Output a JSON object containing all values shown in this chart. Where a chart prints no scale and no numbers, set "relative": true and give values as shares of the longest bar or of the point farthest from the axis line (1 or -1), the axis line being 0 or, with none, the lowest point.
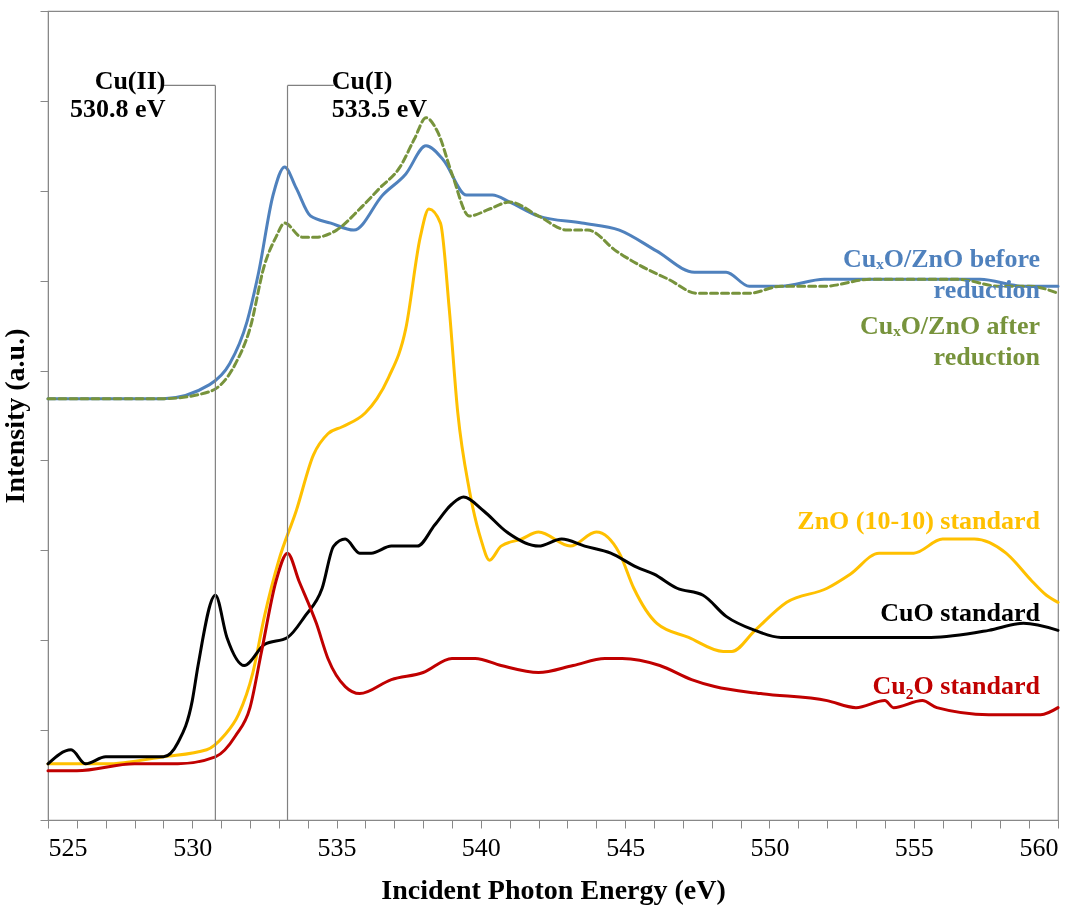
{
  "chart_data": {
    "type": "line",
    "relative": true,
    "xlabel": "Incident Photon Energy (eV)",
    "ylabel": "Intensity (a.u.)",
    "xlim": [
      525,
      560
    ],
    "xticks": [
      525,
      {
        "value": 526,
        "label": null
      },
      {
        "value": 527,
        "label": null
      },
      {
        "value": 528,
        "label": null
      },
      {
        "value": 529,
        "label": null
      },
      530,
      {
        "value": 531,
        "label": null
      },
      {
        "value": 532,
        "label": null
      },
      {
        "value": 533,
        "label": null
      },
      {
        "value": 534,
        "label": null
      },
      535,
      {
        "value": 536,
        "label": null
      },
      {
        "value": 537,
        "label": null
      },
      {
        "value": 538,
        "label": null
      },
      {
        "value": 539,
        "label": null
      },
      540,
      {
        "value": 541,
        "label": null
      },
      {
        "value": 542,
        "label": null
      },
      {
        "value": 543,
        "label": null
      },
      {
        "value": 544,
        "label": null
      },
      545,
      {
        "value": 546,
        "label": null
      },
      {
        "value": 547,
        "label": null
      },
      {
        "value": 548,
        "label": null
      },
      {
        "value": 549,
        "label": null
      },
      550,
      {
        "value": 551,
        "label": null
      },
      {
        "value": 552,
        "label": null
      },
      {
        "value": 553,
        "label": null
      },
      {
        "value": 554,
        "label": null
      },
      555,
      {
        "value": 556,
        "label": null
      },
      {
        "value": 557,
        "label": null
      },
      {
        "value": 558,
        "label": null
      },
      {
        "value": 559,
        "label": null
      },
      560
    ],
    "series": [
      {
        "name": "CuₓO/ZnO before reduction",
        "color": "#4f81bd",
        "line_style": "solid",
        "x": [
          525,
          527,
          529,
          530.6,
          531.3,
          531.9,
          532.3,
          532.8,
          533.2,
          533.6,
          534.1,
          534.8,
          535.6,
          536.6,
          537.4,
          538.1,
          538.7,
          539.5,
          540.4,
          541,
          542,
          543.5,
          544.8,
          546.1,
          547.4,
          548.5,
          549.3,
          550.4,
          551.9,
          552.8,
          554.4,
          555.8,
          557.3,
          558.8,
          560
        ],
        "values": [
          0.6,
          0.6,
          0.6,
          0.62,
          0.65,
          0.71,
          0.78,
          0.89,
          0.93,
          0.9,
          0.86,
          0.85,
          0.84,
          0.89,
          0.92,
          0.96,
          0.94,
          0.89,
          0.89,
          0.88,
          0.86,
          0.85,
          0.84,
          0.81,
          0.78,
          0.78,
          0.76,
          0.76,
          0.77,
          0.77,
          0.77,
          0.77,
          0.77,
          0.76,
          0.76
        ]
      },
      {
        "name": "CuₓO/ZnO after reduction",
        "color": "#77933c",
        "line_style": "dashed",
        "x": [
          525,
          529,
          530.6,
          531.5,
          532,
          532.5,
          532.9,
          533.2,
          533.8,
          534.3,
          535,
          535.8,
          536.5,
          537.2,
          537.7,
          538.1,
          538.5,
          539,
          539.6,
          540.3,
          541,
          542,
          543,
          543.7,
          544.7,
          545.5,
          546.5,
          547.5,
          548.5,
          549.3,
          550.4,
          551.9,
          553.5,
          555,
          556.5,
          558,
          559,
          560
        ],
        "values": [
          0.6,
          0.6,
          0.61,
          0.65,
          0.7,
          0.79,
          0.83,
          0.85,
          0.83,
          0.83,
          0.84,
          0.87,
          0.9,
          0.93,
          0.97,
          1,
          0.98,
          0.92,
          0.86,
          0.87,
          0.88,
          0.86,
          0.84,
          0.84,
          0.81,
          0.79,
          0.77,
          0.75,
          0.75,
          0.75,
          0.76,
          0.76,
          0.77,
          0.77,
          0.77,
          0.76,
          0.76,
          0.75
        ]
      },
      {
        "name": "ZnO (10-10) standard",
        "color": "#ffc000",
        "line_style": "solid",
        "x": [
          525,
          527,
          529,
          530.5,
          531.1,
          531.6,
          532.1,
          532.5,
          533,
          533.6,
          534.2,
          534.7,
          535.2,
          536,
          536.4,
          536.8,
          537.4,
          537.9,
          538.2,
          538.6,
          538.9,
          539.2,
          539.6,
          540,
          540.3,
          540.7,
          541.4,
          542,
          543.1,
          544,
          544.8,
          545.3,
          546.1,
          547.2,
          548.4,
          548.7,
          549.5,
          550.6,
          552,
          552.8,
          553.8,
          555,
          556,
          557.1,
          558.2,
          559.1,
          559.6,
          560
        ],
        "values": [
          0.08,
          0.08,
          0.09,
          0.1,
          0.12,
          0.15,
          0.21,
          0.29,
          0.37,
          0.44,
          0.52,
          0.55,
          0.56,
          0.58,
          0.6,
          0.63,
          0.7,
          0.83,
          0.87,
          0.85,
          0.73,
          0.58,
          0.47,
          0.4,
          0.37,
          0.39,
          0.4,
          0.41,
          0.39,
          0.41,
          0.38,
          0.33,
          0.28,
          0.26,
          0.24,
          0.24,
          0.27,
          0.31,
          0.33,
          0.35,
          0.38,
          0.38,
          0.4,
          0.4,
          0.38,
          0.34,
          0.32,
          0.31
        ]
      },
      {
        "name": "CuO standard",
        "color": "#000000",
        "line_style": "solid",
        "x": [
          525,
          525.8,
          526.3,
          527,
          529,
          529.5,
          530,
          530.2,
          530.8,
          531.2,
          531.8,
          532.5,
          533.3,
          533.9,
          534.5,
          534.9,
          535.3,
          535.8,
          536.2,
          536.9,
          537.8,
          538.4,
          539,
          539.4,
          540.1,
          540.9,
          542,
          542.8,
          543.6,
          544.5,
          545.4,
          546,
          546.8,
          547.7,
          548.5,
          549.5,
          550.4,
          552,
          553.4,
          555.6,
          557.6,
          558.8,
          560
        ],
        "values": [
          0.08,
          0.1,
          0.08,
          0.09,
          0.09,
          0.11,
          0.17,
          0.22,
          0.32,
          0.26,
          0.22,
          0.25,
          0.26,
          0.29,
          0.33,
          0.39,
          0.4,
          0.38,
          0.38,
          0.39,
          0.39,
          0.42,
          0.45,
          0.46,
          0.44,
          0.41,
          0.39,
          0.4,
          0.39,
          0.38,
          0.36,
          0.35,
          0.33,
          0.32,
          0.29,
          0.27,
          0.26,
          0.26,
          0.26,
          0.26,
          0.27,
          0.28,
          0.27
        ]
      },
      {
        "name": "Cu₂O standard",
        "color": "#c00000",
        "line_style": "solid",
        "x": [
          525,
          526,
          528,
          529.5,
          530.8,
          531.5,
          532,
          532.4,
          532.9,
          533.3,
          533.7,
          534.3,
          534.7,
          535.3,
          535.8,
          536.9,
          538,
          539,
          539.8,
          540.7,
          542,
          543.2,
          544.3,
          544.9,
          546.2,
          547.3,
          548.1,
          549.7,
          552,
          553,
          554,
          554.3,
          555.3,
          555.8,
          557.6,
          559.4,
          560
        ],
        "values": [
          0.07,
          0.07,
          0.08,
          0.08,
          0.09,
          0.12,
          0.16,
          0.24,
          0.34,
          0.38,
          0.34,
          0.28,
          0.23,
          0.19,
          0.18,
          0.2,
          0.21,
          0.23,
          0.23,
          0.22,
          0.21,
          0.22,
          0.23,
          0.23,
          0.22,
          0.2,
          0.19,
          0.18,
          0.17,
          0.16,
          0.17,
          0.16,
          0.17,
          0.16,
          0.15,
          0.15,
          0.16
        ]
      }
    ],
    "ref_lines": [
      {
        "axis": "x",
        "value": 530.8,
        "label": "Cu(II)\n530.8 eV",
        "color": "#808080"
      },
      {
        "axis": "x",
        "value": 533.3,
        "label": "Cu(I)\n533.5 eV",
        "color": "#808080"
      }
    ]
  }
}
